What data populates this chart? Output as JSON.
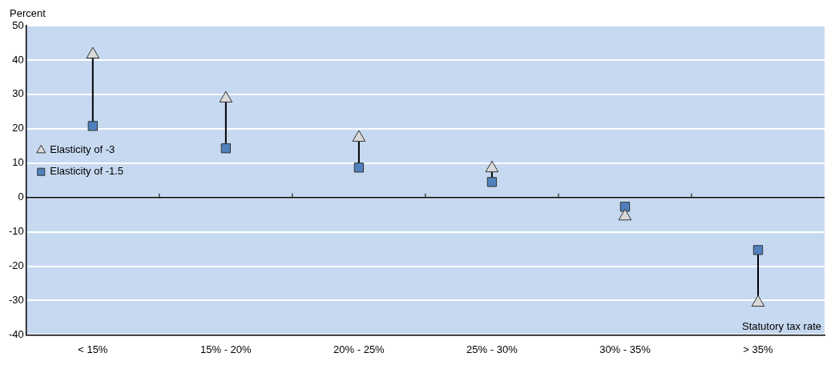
{
  "chart_data": {
    "type": "scatter",
    "ylabel": "Percent",
    "xlabel": "Statutory tax rate",
    "categories": [
      "< 15%",
      "15% - 20%",
      "20% - 25%",
      "25% - 30%",
      "30% - 35%",
      "> 35%"
    ],
    "series": [
      {
        "name": "Elasticity of -3",
        "color": "#d9d9d9",
        "marker": "triangle",
        "values": [
          41.6,
          28.8,
          17.4,
          8.5,
          -5.5,
          -30.6
        ]
      },
      {
        "name": "Elasticity of -1.5",
        "color": "#4f81bd",
        "marker": "square",
        "values": [
          20.8,
          14.3,
          8.7,
          4.5,
          -2.7,
          -15.3
        ]
      }
    ],
    "ylim": [
      -40,
      50
    ],
    "yticks": [
      -40,
      -30,
      -20,
      -10,
      0,
      10,
      20,
      30,
      40,
      50
    ],
    "grid": "y",
    "legend": "top"
  }
}
